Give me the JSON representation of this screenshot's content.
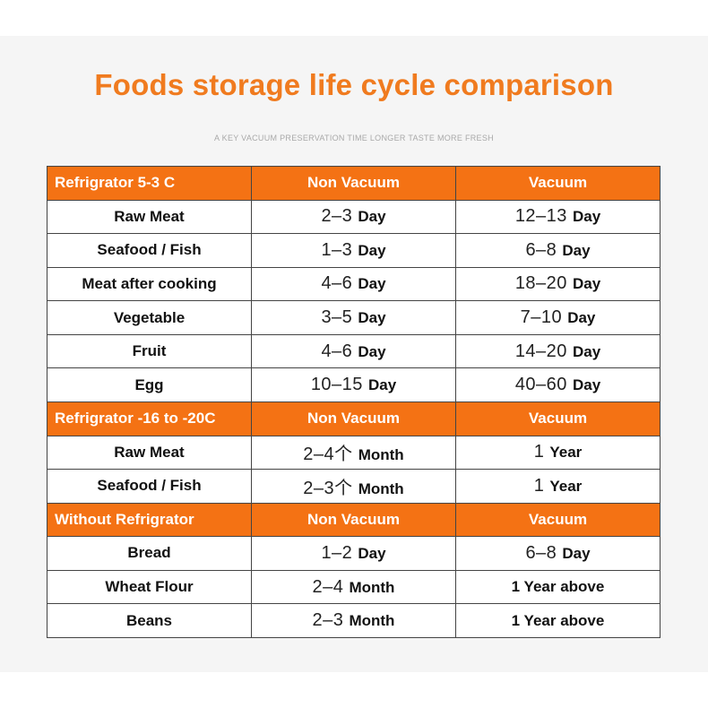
{
  "title": "Foods storage life cycle comparison",
  "subtitle": "A KEY VACUUM PRESERVATION TIME LONGER TASTE MORE FRESH",
  "colors": {
    "header_bg": "#f47214",
    "title": "#f07b1f"
  },
  "sections": [
    {
      "header": [
        "Refrigrator 5-3 C",
        "Non Vacuum",
        "Vacuum"
      ],
      "rows": [
        {
          "food": "Raw Meat",
          "non": {
            "num": "2–3",
            "unit": "Day"
          },
          "vac": {
            "num": "12–13",
            "unit": "Day"
          }
        },
        {
          "food": "Seafood / Fish",
          "non": {
            "num": "1–3",
            "unit": "Day"
          },
          "vac": {
            "num": "6–8",
            "unit": "Day"
          }
        },
        {
          "food": "Meat after cooking",
          "non": {
            "num": "4–6",
            "unit": "Day"
          },
          "vac": {
            "num": "18–20",
            "unit": "Day"
          }
        },
        {
          "food": "Vegetable",
          "non": {
            "num": "3–5",
            "unit": "Day"
          },
          "vac": {
            "num": "7–10",
            "unit": "Day"
          }
        },
        {
          "food": "Fruit",
          "non": {
            "num": "4–6",
            "unit": "Day"
          },
          "vac": {
            "num": "14–20",
            "unit": "Day"
          }
        },
        {
          "food": "Egg",
          "non": {
            "num": "10–15",
            "unit": "Day"
          },
          "vac": {
            "num": "40–60",
            "unit": "Day"
          }
        }
      ]
    },
    {
      "header": [
        "Refrigrator -16 to -20C",
        "Non Vacuum",
        "Vacuum"
      ],
      "rows": [
        {
          "food": "Raw Meat",
          "non": {
            "num": "2–4个",
            "unit": "Month"
          },
          "vac": {
            "num": "1",
            "unit": "Year"
          }
        },
        {
          "food": "Seafood / Fish",
          "non": {
            "num": "2–3个",
            "unit": "Month"
          },
          "vac": {
            "num": "1",
            "unit": "Year"
          }
        }
      ]
    },
    {
      "header": [
        "Without Refrigrator",
        "Non Vacuum",
        "Vacuum"
      ],
      "rows": [
        {
          "food": "Bread",
          "non": {
            "num": "1–2",
            "unit": "Day"
          },
          "vac": {
            "num": "6–8",
            "unit": "Day"
          }
        },
        {
          "food": "Wheat Flour",
          "non": {
            "num": "2–4",
            "unit": "Month"
          },
          "vac": {
            "num": "",
            "unit": "1 Year above"
          }
        },
        {
          "food": "Beans",
          "non": {
            "num": "2–3",
            "unit": "Month"
          },
          "vac": {
            "num": "",
            "unit": "1 Year above"
          }
        }
      ]
    }
  ]
}
